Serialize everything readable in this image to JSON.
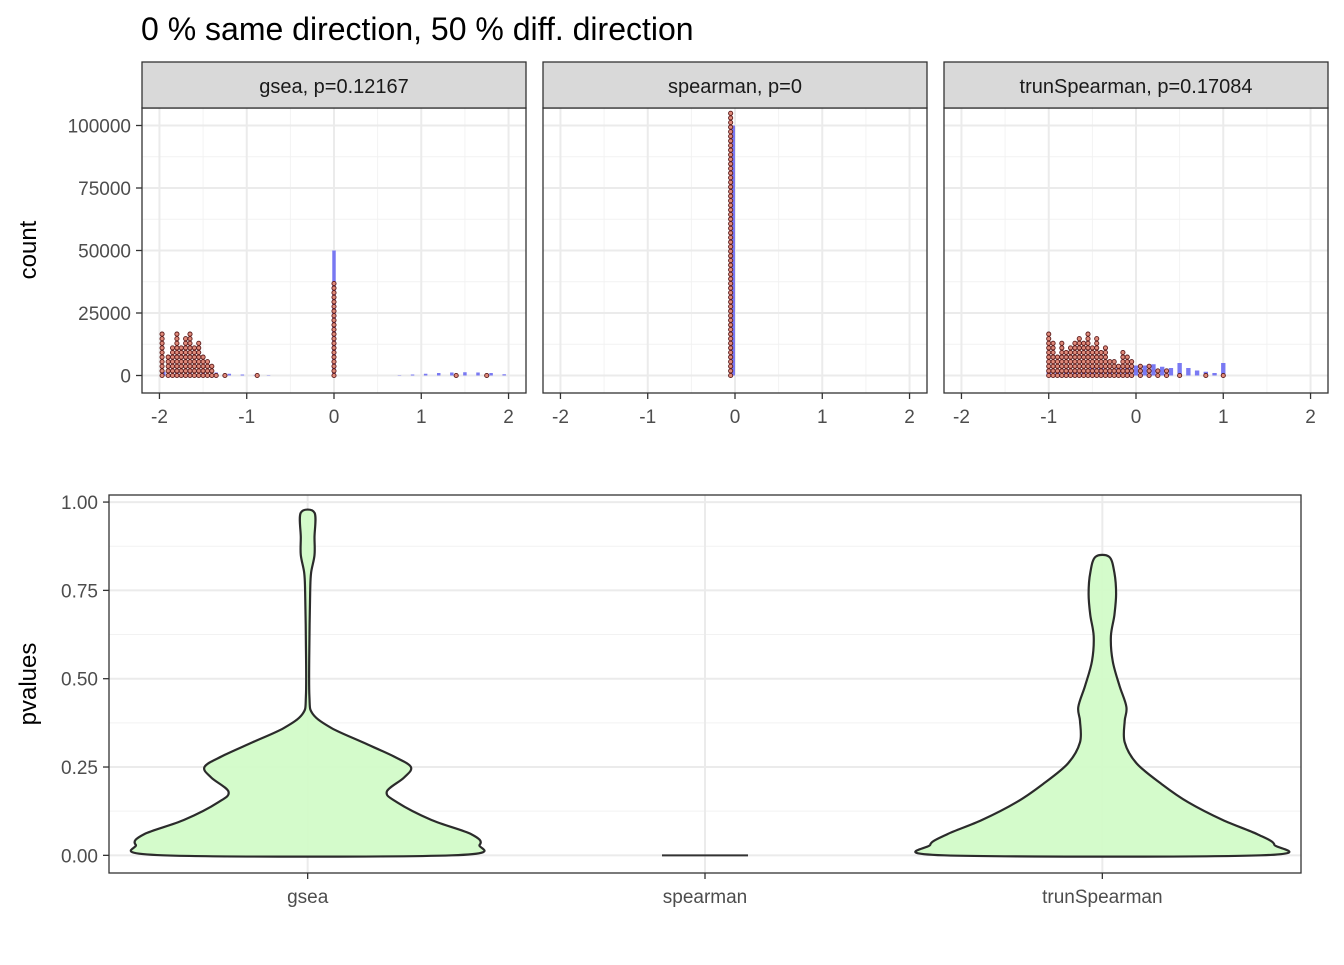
{
  "title": "0 % same direction, 50 % diff. direction",
  "chart_data": [
    {
      "type": "histogram",
      "ylabel": "count",
      "xlim": [
        -2.2,
        2.2
      ],
      "ylim": [
        -7000,
        107000
      ],
      "x_ticks": [
        -2,
        -1,
        0,
        1,
        2
      ],
      "x_tick_labels": [
        "-2",
        "-1",
        "0",
        "1",
        "2"
      ],
      "y_ticks": [
        0,
        25000,
        50000,
        75000,
        100000
      ],
      "y_tick_labels": [
        "0",
        "25000",
        "50000",
        "75000",
        "100000"
      ],
      "grid": true,
      "series_colors": {
        "histogram": "#6b6bf2",
        "dots": "#e08a7a"
      },
      "panels": [
        {
          "strip": "gsea, p=0.12167",
          "histogram": [
            {
              "x": -1.95,
              "y": 1500
            },
            {
              "x": -1.8,
              "y": 1800
            },
            {
              "x": -1.65,
              "y": 1700
            },
            {
              "x": -1.5,
              "y": 1500
            },
            {
              "x": -1.35,
              "y": 1200
            },
            {
              "x": -1.2,
              "y": 700
            },
            {
              "x": -1.05,
              "y": 400
            },
            {
              "x": -0.9,
              "y": 250
            },
            {
              "x": -0.75,
              "y": 150
            },
            {
              "x": 0.0,
              "y": 50000
            },
            {
              "x": 0.75,
              "y": 150
            },
            {
              "x": 0.9,
              "y": 400
            },
            {
              "x": 1.05,
              "y": 700
            },
            {
              "x": 1.2,
              "y": 1000
            },
            {
              "x": 1.35,
              "y": 1200
            },
            {
              "x": 1.5,
              "y": 1300
            },
            {
              "x": 1.65,
              "y": 1200
            },
            {
              "x": 1.8,
              "y": 1000
            },
            {
              "x": 1.95,
              "y": 500
            }
          ],
          "dots": [
            {
              "x": -1.97,
              "y": 18000
            },
            {
              "x": -1.9,
              "y": 8500
            },
            {
              "x": -1.85,
              "y": 11500
            },
            {
              "x": -1.8,
              "y": 17000
            },
            {
              "x": -1.75,
              "y": 12000
            },
            {
              "x": -1.7,
              "y": 15000
            },
            {
              "x": -1.65,
              "y": 17000
            },
            {
              "x": -1.6,
              "y": 11500
            },
            {
              "x": -1.55,
              "y": 13000
            },
            {
              "x": -1.5,
              "y": 8500
            },
            {
              "x": -1.45,
              "y": 6000
            },
            {
              "x": -1.4,
              "y": 4000
            },
            {
              "x": -1.35,
              "y": 1800
            },
            {
              "x": -1.25,
              "y": 800
            },
            {
              "x": -0.88,
              "y": 1200
            },
            {
              "x": 0.0,
              "y": 38000
            },
            {
              "x": 1.4,
              "y": 1200
            },
            {
              "x": 1.75,
              "y": 1000
            }
          ]
        },
        {
          "strip": "spearman, p=0",
          "histogram": [
            {
              "x": -0.02,
              "y": 100000
            }
          ],
          "dots": [
            {
              "x": -0.05,
              "y": 106000
            }
          ]
        },
        {
          "strip": "trunSpearman, p=0.17084",
          "histogram": [
            {
              "x": -1.0,
              "y": 2500
            },
            {
              "x": -0.9,
              "y": 1500
            },
            {
              "x": -0.8,
              "y": 2500
            },
            {
              "x": -0.7,
              "y": 2000
            },
            {
              "x": -0.6,
              "y": 2500
            },
            {
              "x": -0.5,
              "y": 3500
            },
            {
              "x": -0.4,
              "y": 3000
            },
            {
              "x": -0.3,
              "y": 2500
            },
            {
              "x": -0.2,
              "y": 3000
            },
            {
              "x": -0.1,
              "y": 3000
            },
            {
              "x": 0.0,
              "y": 4000
            },
            {
              "x": 0.1,
              "y": 4000
            },
            {
              "x": 0.2,
              "y": 4500
            },
            {
              "x": 0.3,
              "y": 3500
            },
            {
              "x": 0.4,
              "y": 3000
            },
            {
              "x": 0.5,
              "y": 5000
            },
            {
              "x": 0.6,
              "y": 3000
            },
            {
              "x": 0.7,
              "y": 2000
            },
            {
              "x": 0.8,
              "y": 1500
            },
            {
              "x": 0.9,
              "y": 1000
            },
            {
              "x": 1.0,
              "y": 5000
            }
          ],
          "dots": [
            {
              "x": -1.0,
              "y": 18000
            },
            {
              "x": -0.95,
              "y": 13000
            },
            {
              "x": -0.9,
              "y": 9000
            },
            {
              "x": -0.85,
              "y": 14000
            },
            {
              "x": -0.8,
              "y": 10500
            },
            {
              "x": -0.75,
              "y": 12000
            },
            {
              "x": -0.7,
              "y": 13000
            },
            {
              "x": -0.65,
              "y": 15000
            },
            {
              "x": -0.6,
              "y": 14000
            },
            {
              "x": -0.55,
              "y": 17000
            },
            {
              "x": -0.5,
              "y": 12000
            },
            {
              "x": -0.45,
              "y": 15000
            },
            {
              "x": -0.4,
              "y": 10000
            },
            {
              "x": -0.35,
              "y": 12000
            },
            {
              "x": -0.3,
              "y": 7000
            },
            {
              "x": -0.25,
              "y": 6500
            },
            {
              "x": -0.2,
              "y": 5000
            },
            {
              "x": -0.15,
              "y": 10000
            },
            {
              "x": -0.1,
              "y": 7500
            },
            {
              "x": -0.05,
              "y": 6500
            },
            {
              "x": 0.05,
              "y": 4000
            },
            {
              "x": 0.15,
              "y": 5000
            },
            {
              "x": 0.25,
              "y": 2000
            },
            {
              "x": 0.35,
              "y": 2000
            },
            {
              "x": 0.5,
              "y": 1800
            },
            {
              "x": 0.8,
              "y": 1200
            },
            {
              "x": 1.0,
              "y": 1500
            }
          ]
        }
      ]
    },
    {
      "type": "violin",
      "ylabel": "pvalues",
      "categories": [
        "gsea",
        "spearman",
        "trunSpearman"
      ],
      "ylim": [
        -0.05,
        1.02
      ],
      "y_ticks": [
        0.0,
        0.25,
        0.5,
        0.75,
        1.0
      ],
      "y_tick_labels": [
        "0.00",
        "0.25",
        "0.50",
        "0.75",
        "1.00"
      ],
      "grid": true,
      "fill_color": "#d2fbc8",
      "violins": [
        {
          "category": "gsea",
          "profile": [
            {
              "y": 0.0,
              "w": 0.84
            },
            {
              "y": 0.03,
              "w": 1.0
            },
            {
              "y": 0.06,
              "w": 0.95
            },
            {
              "y": 0.1,
              "w": 0.72
            },
            {
              "y": 0.15,
              "w": 0.52
            },
            {
              "y": 0.18,
              "w": 0.46
            },
            {
              "y": 0.22,
              "w": 0.56
            },
            {
              "y": 0.25,
              "w": 0.6
            },
            {
              "y": 0.28,
              "w": 0.5
            },
            {
              "y": 0.32,
              "w": 0.32
            },
            {
              "y": 0.36,
              "w": 0.14
            },
            {
              "y": 0.4,
              "w": 0.03
            },
            {
              "y": 0.45,
              "w": 0.01
            },
            {
              "y": 0.6,
              "w": 0.01
            },
            {
              "y": 0.75,
              "w": 0.015
            },
            {
              "y": 0.8,
              "w": 0.02
            },
            {
              "y": 0.85,
              "w": 0.04
            },
            {
              "y": 0.9,
              "w": 0.04
            },
            {
              "y": 0.97,
              "w": 0.04
            }
          ]
        },
        {
          "category": "spearman",
          "profile": [
            {
              "y": 0.0,
              "w": 0.25
            }
          ]
        },
        {
          "category": "trunSpearman",
          "profile": [
            {
              "y": 0.0,
              "w": 0.92
            },
            {
              "y": 0.03,
              "w": 1.0
            },
            {
              "y": 0.06,
              "w": 0.9
            },
            {
              "y": 0.1,
              "w": 0.7
            },
            {
              "y": 0.15,
              "w": 0.5
            },
            {
              "y": 0.2,
              "w": 0.35
            },
            {
              "y": 0.26,
              "w": 0.2
            },
            {
              "y": 0.32,
              "w": 0.13
            },
            {
              "y": 0.38,
              "w": 0.13
            },
            {
              "y": 0.42,
              "w": 0.14
            },
            {
              "y": 0.48,
              "w": 0.1
            },
            {
              "y": 0.55,
              "w": 0.06
            },
            {
              "y": 0.62,
              "w": 0.05
            },
            {
              "y": 0.68,
              "w": 0.07
            },
            {
              "y": 0.74,
              "w": 0.08
            },
            {
              "y": 0.8,
              "w": 0.07
            },
            {
              "y": 0.845,
              "w": 0.04
            }
          ]
        }
      ]
    }
  ]
}
